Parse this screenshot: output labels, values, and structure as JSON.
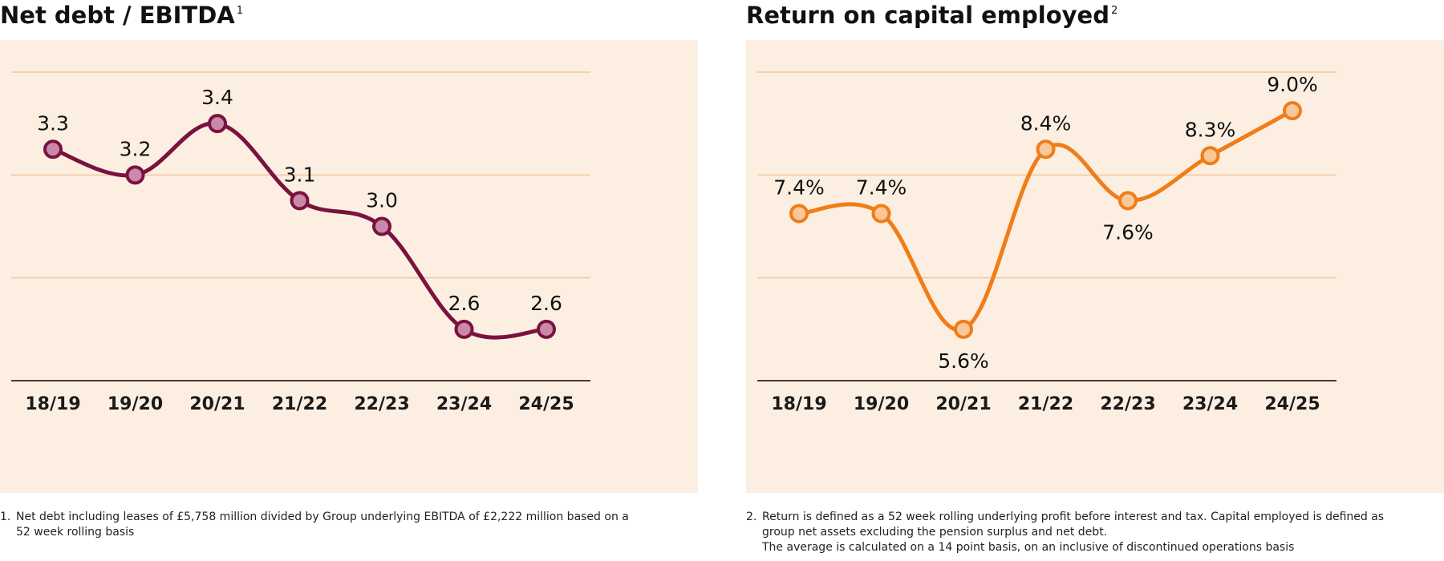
{
  "colors": {
    "plot_background": "#fcefe2",
    "gridline": "#f2c79b",
    "baseline": "#4a3a3a",
    "left_series": "#7a1240",
    "left_marker_fill": "#c88aa8",
    "right_series": "#f07d18",
    "right_marker_fill": "#f8c89a"
  },
  "left": {
    "title": "Net debt / EBITDA",
    "title_note": "1",
    "footnote_number": "1.",
    "footnote_lines": [
      "Net debt including leases of £5,758 million divided by Group underlying EBITDA of £2,222 million based on a",
      "52 week rolling basis"
    ]
  },
  "right": {
    "title": "Return on capital employed",
    "title_note": "2",
    "footnote_number": "2.",
    "footnote_lines": [
      "Return is defined as a 52 week rolling underlying profit before interest and tax.  Capital employed is defined as",
      "group net assets excluding the pension surplus and net debt.",
      "The average is calculated on a 14 point basis, on an inclusive of discontinued operations basis"
    ]
  },
  "chart_data": [
    {
      "type": "line",
      "title": "Net debt / EBITDA",
      "categories": [
        "18/19",
        "19/20",
        "20/21",
        "21/22",
        "22/23",
        "23/24",
        "24/25"
      ],
      "values": [
        3.3,
        3.2,
        3.4,
        3.1,
        3.0,
        2.6,
        2.6
      ],
      "data_labels": [
        "3.3",
        "3.2",
        "3.4",
        "3.1",
        "3.0",
        "2.6",
        "2.6"
      ],
      "label_position": [
        "above",
        "above",
        "above",
        "above",
        "above",
        "above",
        "above"
      ],
      "ylim": [
        2.4,
        3.6
      ],
      "gridlines": [
        3.2,
        2.8
      ],
      "grid": true,
      "smooth": true
    },
    {
      "type": "line",
      "title": "Return on capital employed",
      "categories": [
        "18/19",
        "19/20",
        "20/21",
        "21/22",
        "22/23",
        "23/24",
        "24/25"
      ],
      "values": [
        7.4,
        7.4,
        5.6,
        8.4,
        7.6,
        8.3,
        9.0
      ],
      "data_labels": [
        "7.4%",
        "7.4%",
        "5.6%",
        "8.4%",
        "7.6%",
        "8.3%",
        "9.0%"
      ],
      "label_position": [
        "above",
        "above",
        "below",
        "above",
        "below",
        "above",
        "above"
      ],
      "ylim": [
        4.8,
        9.6
      ],
      "gridlines": [
        8.0,
        6.4
      ],
      "grid": true,
      "smooth": true
    }
  ]
}
